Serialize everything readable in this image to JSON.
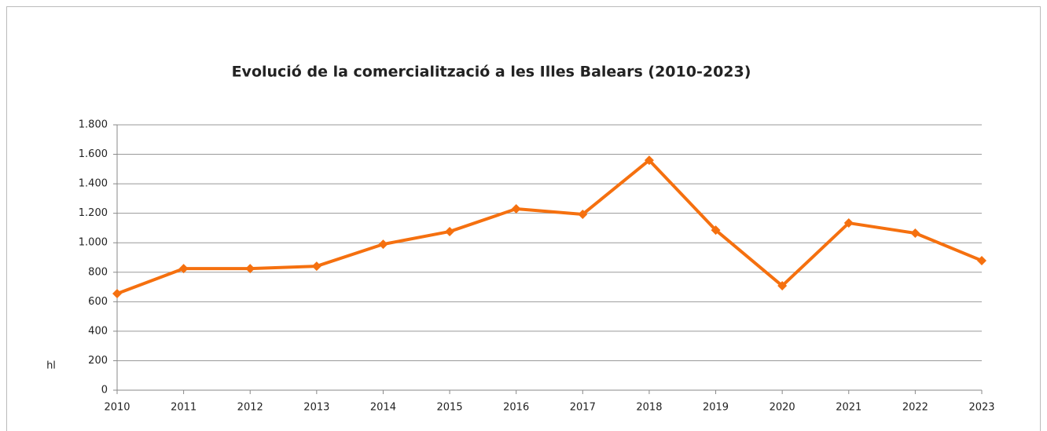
{
  "chart_data": {
    "type": "line",
    "title": "Evolució de la comercialització a les Illes Balears (2010-2023)",
    "y_label": "hl",
    "categories": [
      "2010",
      "2011",
      "2012",
      "2013",
      "2014",
      "2015",
      "2016",
      "2017",
      "2018",
      "2019",
      "2020",
      "2021",
      "2022",
      "2023"
    ],
    "series": [
      {
        "name": "hl",
        "color": "#f5700f",
        "values": [
          655,
          825,
          825,
          841,
          990,
          1076,
          1230,
          1193,
          1560,
          1086,
          708,
          1134,
          1065,
          879
        ]
      }
    ],
    "ylim": [
      0,
      1800
    ],
    "yticks": [
      0,
      200,
      400,
      600,
      800,
      {
        "value": 1000,
        "label": "1.000"
      },
      {
        "value": 1200,
        "label": "1.200"
      },
      {
        "value": 1400,
        "label": "1.400"
      },
      {
        "value": 1600,
        "label": "1.600"
      },
      {
        "value": 1800,
        "label": "1.800"
      }
    ],
    "grid": true,
    "legend": false
  }
}
